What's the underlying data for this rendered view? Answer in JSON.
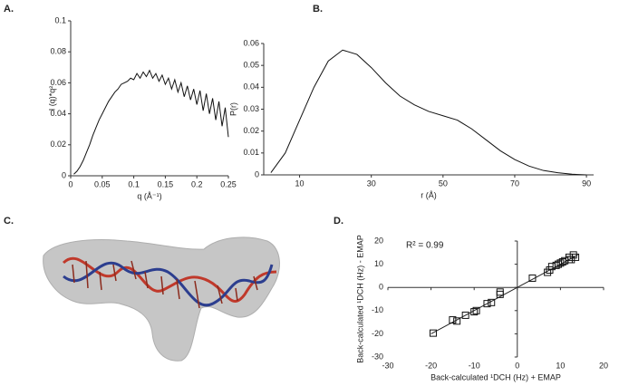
{
  "chart_data": [
    {
      "type": "line",
      "panel_label": "A.",
      "x_label": "q (Å⁻¹)",
      "y_label": "I (q)*q²",
      "color": "#111111",
      "x": [
        0.005,
        0.01,
        0.015,
        0.02,
        0.025,
        0.03,
        0.035,
        0.04,
        0.045,
        0.05,
        0.055,
        0.06,
        0.065,
        0.07,
        0.075,
        0.08,
        0.085,
        0.09,
        0.095,
        0.1,
        0.105,
        0.11,
        0.115,
        0.12,
        0.125,
        0.13,
        0.135,
        0.14,
        0.145,
        0.15,
        0.155,
        0.16,
        0.165,
        0.17,
        0.175,
        0.18,
        0.185,
        0.19,
        0.195,
        0.2,
        0.205,
        0.21,
        0.215,
        0.22,
        0.225,
        0.23,
        0.235,
        0.24,
        0.245,
        0.25
      ],
      "values": [
        0.001,
        0.003,
        0.006,
        0.01,
        0.015,
        0.02,
        0.026,
        0.031,
        0.036,
        0.04,
        0.044,
        0.048,
        0.051,
        0.054,
        0.056,
        0.059,
        0.06,
        0.061,
        0.063,
        0.062,
        0.066,
        0.063,
        0.067,
        0.064,
        0.068,
        0.063,
        0.066,
        0.061,
        0.065,
        0.059,
        0.063,
        0.056,
        0.062,
        0.054,
        0.06,
        0.051,
        0.058,
        0.049,
        0.056,
        0.046,
        0.055,
        0.042,
        0.053,
        0.04,
        0.05,
        0.036,
        0.048,
        0.032,
        0.044,
        0.025
      ],
      "xlim": [
        0,
        0.25
      ],
      "xticks": [
        0,
        0.05,
        0.1,
        0.15,
        0.2,
        0.25
      ],
      "ylim": [
        0,
        0.1
      ],
      "yticks": [
        0,
        0.02,
        0.04,
        0.06,
        0.08,
        0.1
      ]
    },
    {
      "type": "line",
      "panel_label": "B.",
      "x_label": "r (Å)",
      "y_label": "P(r)",
      "color": "#111111",
      "x": [
        2,
        6,
        10,
        14,
        18,
        22,
        26,
        30,
        34,
        38,
        42,
        46,
        50,
        54,
        58,
        62,
        66,
        70,
        74,
        78,
        82,
        86,
        90
      ],
      "values": [
        0.001,
        0.01,
        0.025,
        0.04,
        0.052,
        0.057,
        0.055,
        0.049,
        0.042,
        0.036,
        0.032,
        0.029,
        0.027,
        0.025,
        0.021,
        0.016,
        0.011,
        0.007,
        0.004,
        0.002,
        0.001,
        0.0003,
        0
      ],
      "xlim": [
        0,
        92
      ],
      "xticks": [
        10,
        30,
        50,
        70,
        90
      ],
      "ylim": [
        0,
        0.06
      ],
      "yticks": [
        0,
        0.01,
        0.02,
        0.03,
        0.04,
        0.05,
        0.06
      ]
    },
    {
      "type": "image",
      "panel_label": "C."
    },
    {
      "type": "scatter",
      "panel_label": "D.",
      "x_label": "Back-calculated ¹DCH (Hz) + EMAP",
      "y_label": "Back-calculated ¹DCH (Hz) - EMAP",
      "annotation": "R² = 0.99",
      "color": "#111111",
      "axes_cross_zero": true,
      "x": [
        -19.5,
        -15,
        -14,
        -12,
        -10,
        -9.5,
        -7,
        -6,
        -4,
        -4,
        3.5,
        7,
        7.5,
        8,
        9,
        9.5,
        10,
        10.5,
        11,
        12,
        12,
        12.5,
        13,
        13.5
      ],
      "values": [
        -19.7,
        -14,
        -14.5,
        -12,
        -10.5,
        -10,
        -7,
        -6.5,
        -2,
        -3,
        4,
        6.5,
        7.5,
        9,
        9.5,
        10,
        10.5,
        11,
        11.5,
        12,
        13,
        12,
        14,
        13
      ],
      "trendline": {
        "x": [
          -20,
          14
        ],
        "values": [
          -20,
          14
        ]
      },
      "xlim": [
        -30,
        20
      ],
      "xticks": [
        -30,
        -20,
        -10,
        0,
        10,
        20
      ],
      "ylim": [
        -30,
        20
      ],
      "yticks": [
        -30,
        -20,
        -10,
        0,
        10,
        20
      ]
    }
  ]
}
